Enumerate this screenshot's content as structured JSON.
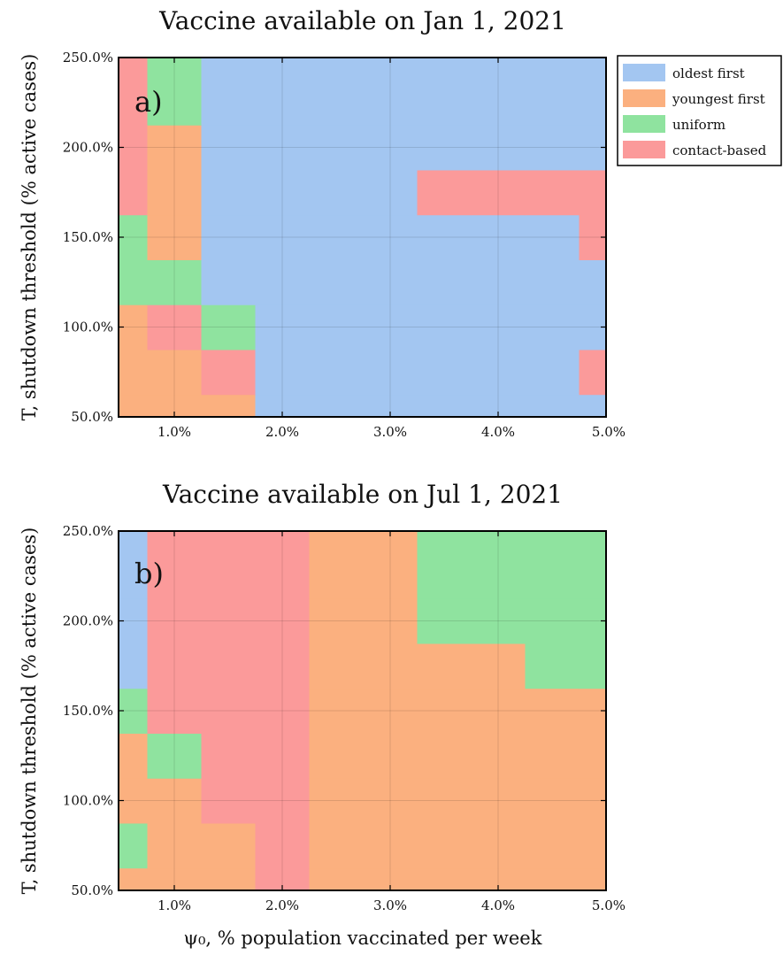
{
  "colors": {
    "oldest first": "#a3c6f1",
    "youngest first": "#fbb07f",
    "uniform": "#8fe39f",
    "contact-based": "#fb9a9a"
  },
  "legend": {
    "placement": "right of top panel",
    "items": [
      "oldest first",
      "youngest first",
      "uniform",
      "contact-based"
    ]
  },
  "x_label": "ψ₀, % population vaccinated per week",
  "y_label": "T, shutdown threshold (% active cases)",
  "chart_data": [
    {
      "type": "heatmap",
      "title": "Vaccine available on Jan 1, 2021",
      "panel_label": "a)",
      "x_ticks": [
        "1.0%",
        "2.0%",
        "3.0%",
        "4.0%",
        "5.0%"
      ],
      "y_ticks": [
        "50.0%",
        "100.0%",
        "150.0%",
        "200.0%",
        "250.0%"
      ],
      "xlim": [
        0.5,
        5.0
      ],
      "ylim": [
        50,
        250
      ],
      "grid": true,
      "x_centers": [
        0.5,
        1.0,
        1.5,
        2.0,
        2.5,
        3.0,
        3.5,
        4.0,
        4.5,
        5.0
      ],
      "y_centers": [
        50,
        75,
        100,
        125,
        150,
        175,
        200,
        225,
        250
      ],
      "cells": [
        [
          "youngest first",
          "youngest first",
          "youngest first",
          "oldest first",
          "oldest first",
          "oldest first",
          "oldest first",
          "oldest first",
          "oldest first",
          "oldest first"
        ],
        [
          "youngest first",
          "youngest first",
          "contact-based",
          "oldest first",
          "oldest first",
          "oldest first",
          "oldest first",
          "oldest first",
          "oldest first",
          "contact-based"
        ],
        [
          "youngest first",
          "contact-based",
          "uniform",
          "oldest first",
          "oldest first",
          "oldest first",
          "oldest first",
          "oldest first",
          "oldest first",
          "oldest first"
        ],
        [
          "uniform",
          "uniform",
          "oldest first",
          "oldest first",
          "oldest first",
          "oldest first",
          "oldest first",
          "oldest first",
          "oldest first",
          "oldest first"
        ],
        [
          "uniform",
          "youngest first",
          "oldest first",
          "oldest first",
          "oldest first",
          "oldest first",
          "oldest first",
          "oldest first",
          "oldest first",
          "contact-based"
        ],
        [
          "contact-based",
          "youngest first",
          "oldest first",
          "oldest first",
          "oldest first",
          "oldest first",
          "contact-based",
          "contact-based",
          "contact-based",
          "contact-based"
        ],
        [
          "contact-based",
          "youngest first",
          "oldest first",
          "oldest first",
          "oldest first",
          "oldest first",
          "oldest first",
          "oldest first",
          "oldest first",
          "oldest first"
        ],
        [
          "contact-based",
          "uniform",
          "oldest first",
          "oldest first",
          "oldest first",
          "oldest first",
          "oldest first",
          "oldest first",
          "oldest first",
          "oldest first"
        ],
        [
          "contact-based",
          "uniform",
          "oldest first",
          "oldest first",
          "oldest first",
          "oldest first",
          "oldest first",
          "oldest first",
          "oldest first",
          "oldest first"
        ]
      ]
    },
    {
      "type": "heatmap",
      "title": "Vaccine available on Jul 1, 2021",
      "panel_label": "b)",
      "x_ticks": [
        "1.0%",
        "2.0%",
        "3.0%",
        "4.0%",
        "5.0%"
      ],
      "y_ticks": [
        "50.0%",
        "100.0%",
        "150.0%",
        "200.0%",
        "250.0%"
      ],
      "xlim": [
        0.5,
        5.0
      ],
      "ylim": [
        50,
        250
      ],
      "grid": true,
      "x_centers": [
        0.5,
        1.0,
        1.5,
        2.0,
        2.5,
        3.0,
        3.5,
        4.0,
        4.5,
        5.0
      ],
      "y_centers": [
        50,
        75,
        100,
        125,
        150,
        175,
        200,
        225,
        250
      ],
      "cells": [
        [
          "youngest first",
          "youngest first",
          "youngest first",
          "contact-based",
          "youngest first",
          "youngest first",
          "youngest first",
          "youngest first",
          "youngest first",
          "youngest first"
        ],
        [
          "uniform",
          "youngest first",
          "youngest first",
          "contact-based",
          "youngest first",
          "youngest first",
          "youngest first",
          "youngest first",
          "youngest first",
          "youngest first"
        ],
        [
          "youngest first",
          "youngest first",
          "contact-based",
          "contact-based",
          "youngest first",
          "youngest first",
          "youngest first",
          "youngest first",
          "youngest first",
          "youngest first"
        ],
        [
          "youngest first",
          "uniform",
          "contact-based",
          "contact-based",
          "youngest first",
          "youngest first",
          "youngest first",
          "youngest first",
          "youngest first",
          "youngest first"
        ],
        [
          "uniform",
          "contact-based",
          "contact-based",
          "contact-based",
          "youngest first",
          "youngest first",
          "youngest first",
          "youngest first",
          "youngest first",
          "youngest first"
        ],
        [
          "oldest first",
          "contact-based",
          "contact-based",
          "contact-based",
          "youngest first",
          "youngest first",
          "youngest first",
          "youngest first",
          "uniform",
          "uniform"
        ],
        [
          "oldest first",
          "contact-based",
          "contact-based",
          "contact-based",
          "youngest first",
          "youngest first",
          "uniform",
          "uniform",
          "uniform",
          "uniform"
        ],
        [
          "oldest first",
          "contact-based",
          "contact-based",
          "contact-based",
          "youngest first",
          "youngest first",
          "uniform",
          "uniform",
          "uniform",
          "uniform"
        ],
        [
          "oldest first",
          "contact-based",
          "contact-based",
          "contact-based",
          "youngest first",
          "youngest first",
          "uniform",
          "uniform",
          "uniform",
          "uniform"
        ]
      ]
    }
  ]
}
